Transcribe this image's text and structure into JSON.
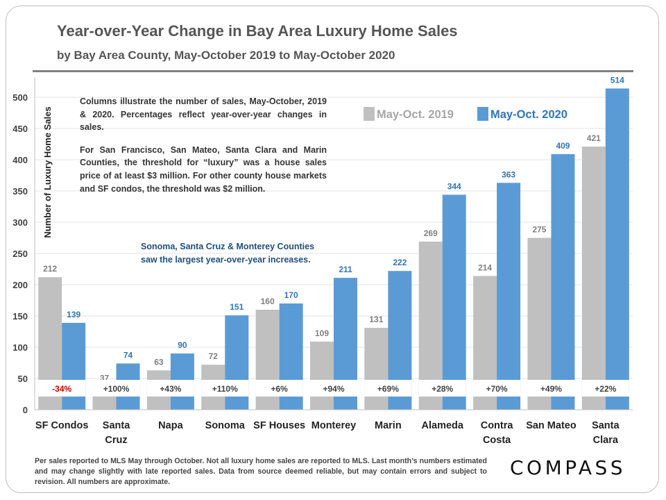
{
  "title": "Year-over-Year Change in Bay Area Luxury Home Sales",
  "subtitle": "by Bay Area County, May-October 2019 to May-October 2020",
  "note_paragraphs": [
    "Columns illustrate the number of sales, May-October, 2019 & 2020. Percentages reflect year-over-year changes in sales.",
    "For San Francisco, San Mateo, Santa Clara and Marin Counties, the threshold for “luxury” was a house sales price of at least $3 million. For other county house markets and SF condos, the threshold was $2 million."
  ],
  "highlight_lines": [
    "Sonoma, Santa Cruz & Monterey Counties",
    "saw the largest year-over-year increases."
  ],
  "footer": "Per sales reported to MLS May through October. Not all luxury home sales are reported to MLS. Last month’s numbers estimated and may change slightly with late reported sales. Data from source deemed reliable, but may contain errors and subject to revision. All numbers are approximate.",
  "logo": "COMPASS",
  "chart_data": {
    "type": "bar",
    "title": "Year-over-Year Change in Bay Area Luxury Home Sales",
    "ylabel": "Number of Luxury Home Sales",
    "xlabel": "",
    "ylim": [
      0,
      520
    ],
    "yticks": [
      0,
      50,
      100,
      150,
      200,
      250,
      300,
      350,
      400,
      450,
      500
    ],
    "categories": [
      [
        "SF Condos"
      ],
      [
        "Santa",
        "Cruz"
      ],
      [
        "Napa"
      ],
      [
        "Sonoma"
      ],
      [
        "SF Houses"
      ],
      [
        "Monterey"
      ],
      [
        "Marin"
      ],
      [
        "Alameda"
      ],
      [
        "Contra",
        "Costa"
      ],
      [
        "San Mateo"
      ],
      [
        "Santa",
        "Clara"
      ]
    ],
    "series": [
      {
        "name": "May-Oct. 2019",
        "color": "#c0c0c0",
        "label_color": "#7f7f7f",
        "values": [
          212,
          37,
          63,
          72,
          160,
          109,
          131,
          269,
          214,
          275,
          421
        ]
      },
      {
        "name": "May-Oct. 2020",
        "color": "#5b9bd5",
        "label_color": "#2e75b6",
        "values": [
          139,
          74,
          90,
          151,
          170,
          211,
          222,
          344,
          363,
          409,
          514
        ]
      }
    ],
    "yoy_changes": [
      "-34%",
      "+100%",
      "+43%",
      "+110%",
      "+6%",
      "+94%",
      "+69%",
      "+28%",
      "+70%",
      "+49%",
      "+22%"
    ],
    "negative_color": "#c00000",
    "legend_position": "top-right"
  }
}
